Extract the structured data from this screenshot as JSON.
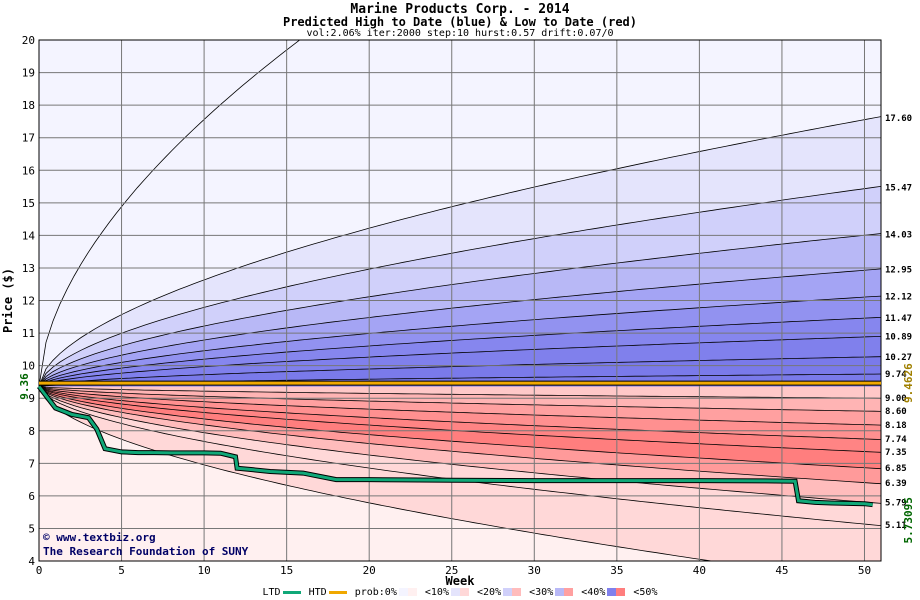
{
  "chart_data": {
    "type": "area",
    "title": "Marine Products Corp. - 2014",
    "subtitle": "Predicted High to Date (blue) &  Low to Date (red)",
    "params": "vol:2.06% iter:2000 step:10 hurst:0.57 drift:0.07/0",
    "xlabel": "Week",
    "ylabel": "Price ($)",
    "xlim": [
      0,
      51
    ],
    "ylim": [
      4,
      20
    ],
    "x_ticks": [
      0,
      5,
      10,
      15,
      20,
      25,
      30,
      35,
      40,
      45,
      50
    ],
    "y_ticks": [
      4,
      5,
      6,
      7,
      8,
      9,
      10,
      11,
      12,
      13,
      14,
      15,
      16,
      17,
      18,
      19,
      20
    ],
    "grid": true,
    "start_price": 9.36,
    "start_label": "9.36",
    "high_to_date_end_values": [
      17.6,
      15.47,
      14.03,
      12.95,
      12.12,
      11.47,
      10.89,
      10.27,
      9.74
    ],
    "high_to_date_labels": [
      "17.60",
      "15.47",
      "14.03",
      "12.95",
      "12.12",
      "11.47",
      "10.89",
      "10.27",
      "9.74"
    ],
    "low_to_date_end_values": [
      9.0,
      8.6,
      8.18,
      7.74,
      7.35,
      6.85,
      6.39,
      5.79,
      5.11
    ],
    "low_to_date_labels": [
      "9.00",
      "8.60",
      "8.18",
      "7.74",
      "7.35",
      "6.85",
      "6.39",
      "5.79",
      "5.11"
    ],
    "outer_high_at_15": 20,
    "outer_low_at_20": 4,
    "htd_value": 9.4626,
    "htd_label": "9.4626",
    "ltd_value": 5.73095,
    "ltd_label": "5.73095",
    "ltd_path": {
      "x": [
        0,
        1,
        2,
        3,
        3.5,
        4,
        5,
        6,
        7,
        8,
        10,
        11,
        11.9,
        12,
        13,
        14,
        16,
        18,
        20,
        22,
        25,
        30,
        35,
        40,
        44,
        45.8,
        46,
        47,
        48,
        50,
        50.5
      ],
      "y": [
        9.36,
        8.7,
        8.5,
        8.4,
        8.05,
        7.45,
        7.35,
        7.33,
        7.33,
        7.32,
        7.32,
        7.31,
        7.2,
        6.85,
        6.8,
        6.75,
        6.7,
        6.5,
        6.5,
        6.49,
        6.48,
        6.47,
        6.47,
        6.47,
        6.46,
        6.45,
        5.85,
        5.8,
        5.78,
        5.76,
        5.73
      ]
    },
    "colors": {
      "blue_bands": [
        "#f4f4ff",
        "#e4e4fc",
        "#d0d0fa",
        "#b8b8f6",
        "#a4a4f4",
        "#9292f0",
        "#8686ee",
        "#8080ec",
        "#7a7aea"
      ],
      "red_bands": [
        "#ffc8c8",
        "#ffb4b4",
        "#ffa0a0",
        "#ff9090",
        "#ff8484",
        "#ff7e7e",
        "#ff9a9a",
        "#ffbcbc",
        "#ffd8d8",
        "#fff0f0"
      ],
      "htd": "#f0a800",
      "ltd": "#10a878",
      "ltd_label_color": "#006600",
      "htd_label_color": "#a08000"
    }
  },
  "watermark": {
    "line1": "© www.textbiz.org",
    "line2": "The Research Foundation of SUNY"
  },
  "legend": {
    "ltd": "LTD",
    "htd": "HTD",
    "prob": "prob:0%",
    "p10": "<10%",
    "p20": "<20%",
    "p30": "<30%",
    "p40": "<40%",
    "p50": "<50%"
  }
}
